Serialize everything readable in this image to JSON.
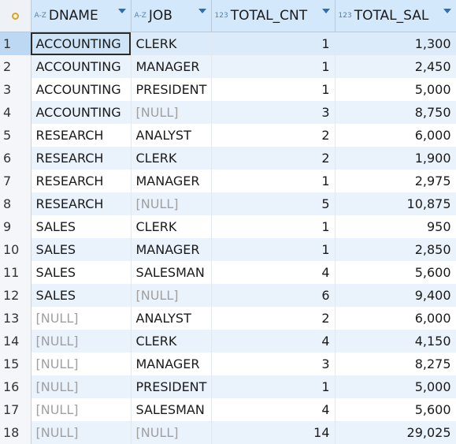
{
  "columns": [
    {
      "type_tag": "A-Z",
      "label": "DNAME"
    },
    {
      "type_tag": "A-Z",
      "label": "JOB"
    },
    {
      "type_tag": "123",
      "label": "TOTAL_CNT"
    },
    {
      "type_tag": "123",
      "label": "TOTAL_SAL"
    }
  ],
  "rows": [
    {
      "n": "1",
      "dname": "ACCOUNTING",
      "job": "CLERK",
      "cnt": "1",
      "sal": "1,300"
    },
    {
      "n": "2",
      "dname": "ACCOUNTING",
      "job": "MANAGER",
      "cnt": "1",
      "sal": "2,450"
    },
    {
      "n": "3",
      "dname": "ACCOUNTING",
      "job": "PRESIDENT",
      "cnt": "1",
      "sal": "5,000"
    },
    {
      "n": "4",
      "dname": "ACCOUNTING",
      "job": "[NULL]",
      "cnt": "3",
      "sal": "8,750"
    },
    {
      "n": "5",
      "dname": "RESEARCH",
      "job": "ANALYST",
      "cnt": "2",
      "sal": "6,000"
    },
    {
      "n": "6",
      "dname": "RESEARCH",
      "job": "CLERK",
      "cnt": "2",
      "sal": "1,900"
    },
    {
      "n": "7",
      "dname": "RESEARCH",
      "job": "MANAGER",
      "cnt": "1",
      "sal": "2,975"
    },
    {
      "n": "8",
      "dname": "RESEARCH",
      "job": "[NULL]",
      "cnt": "5",
      "sal": "10,875"
    },
    {
      "n": "9",
      "dname": "SALES",
      "job": "CLERK",
      "cnt": "1",
      "sal": "950"
    },
    {
      "n": "10",
      "dname": "SALES",
      "job": "MANAGER",
      "cnt": "1",
      "sal": "2,850"
    },
    {
      "n": "11",
      "dname": "SALES",
      "job": "SALESMAN",
      "cnt": "4",
      "sal": "5,600"
    },
    {
      "n": "12",
      "dname": "SALES",
      "job": "[NULL]",
      "cnt": "6",
      "sal": "9,400"
    },
    {
      "n": "13",
      "dname": "[NULL]",
      "job": "ANALYST",
      "cnt": "2",
      "sal": "6,000"
    },
    {
      "n": "14",
      "dname": "[NULL]",
      "job": "CLERK",
      "cnt": "4",
      "sal": "4,150"
    },
    {
      "n": "15",
      "dname": "[NULL]",
      "job": "MANAGER",
      "cnt": "3",
      "sal": "8,275"
    },
    {
      "n": "16",
      "dname": "[NULL]",
      "job": "PRESIDENT",
      "cnt": "1",
      "sal": "5,000"
    },
    {
      "n": "17",
      "dname": "[NULL]",
      "job": "SALESMAN",
      "cnt": "4",
      "sal": "5,600"
    },
    {
      "n": "18",
      "dname": "[NULL]",
      "job": "[NULL]",
      "cnt": "14",
      "sal": "29,025"
    }
  ],
  "selected_row": "1",
  "colors": {
    "header_bg": "#d3e8fb",
    "stripe": "#eaf2fc",
    "null_text": "#a0a0a0",
    "sort_arrow": "#2a6fb5"
  },
  "icons": {
    "corner": "settings-dot-icon",
    "sort": "sort-desc-triangle-icon"
  }
}
